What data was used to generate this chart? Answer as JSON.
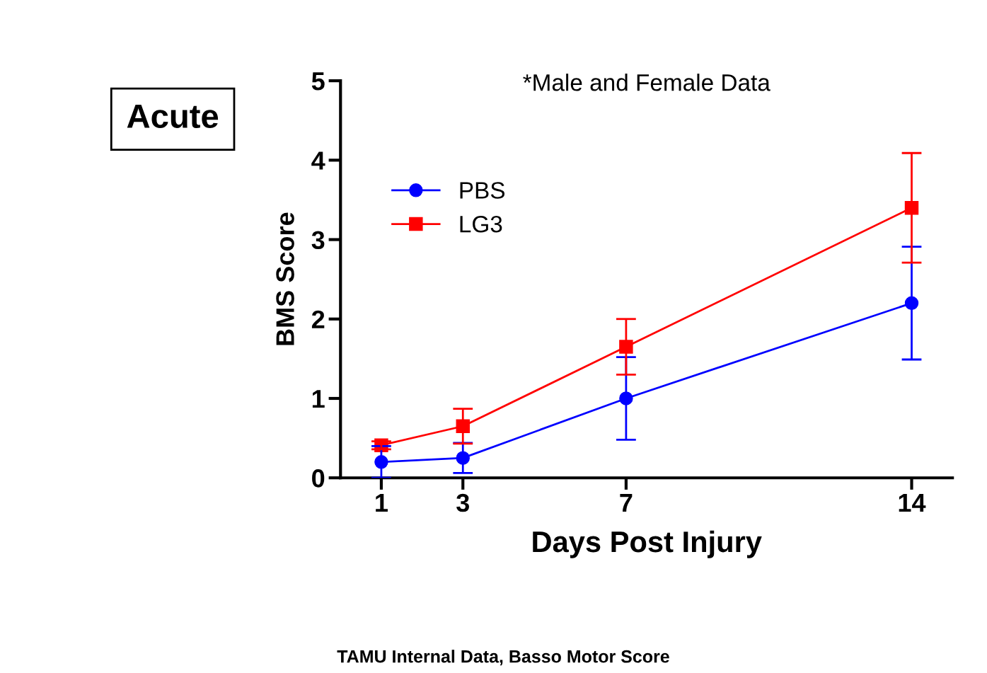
{
  "chart_data": {
    "type": "line",
    "title": "*Male and Female Data",
    "xlabel": "Days Post Injury",
    "ylabel": "BMS Score",
    "x": [
      1,
      3,
      7,
      14
    ],
    "series": [
      {
        "name": "PBS",
        "color": "#0000ff",
        "marker": "circle",
        "values": [
          0.2,
          0.25,
          1.0,
          2.2
        ],
        "errors": [
          0.2,
          0.19,
          0.52,
          0.71
        ]
      },
      {
        "name": "LG3",
        "color": "#ff0000",
        "marker": "square",
        "values": [
          0.41,
          0.65,
          1.65,
          3.4
        ],
        "errors": [
          0.05,
          0.22,
          0.35,
          0.69
        ]
      }
    ],
    "xlim": [
      0,
      15
    ],
    "xticks": [
      1,
      3,
      7,
      14
    ],
    "ylim": [
      0,
      5
    ],
    "yticks": [
      0,
      1,
      2,
      3,
      4,
      5
    ],
    "grid": false,
    "legend": "top left",
    "annotations": [
      "Acute",
      "TAMU Internal Data, Basso Motor Score"
    ]
  }
}
